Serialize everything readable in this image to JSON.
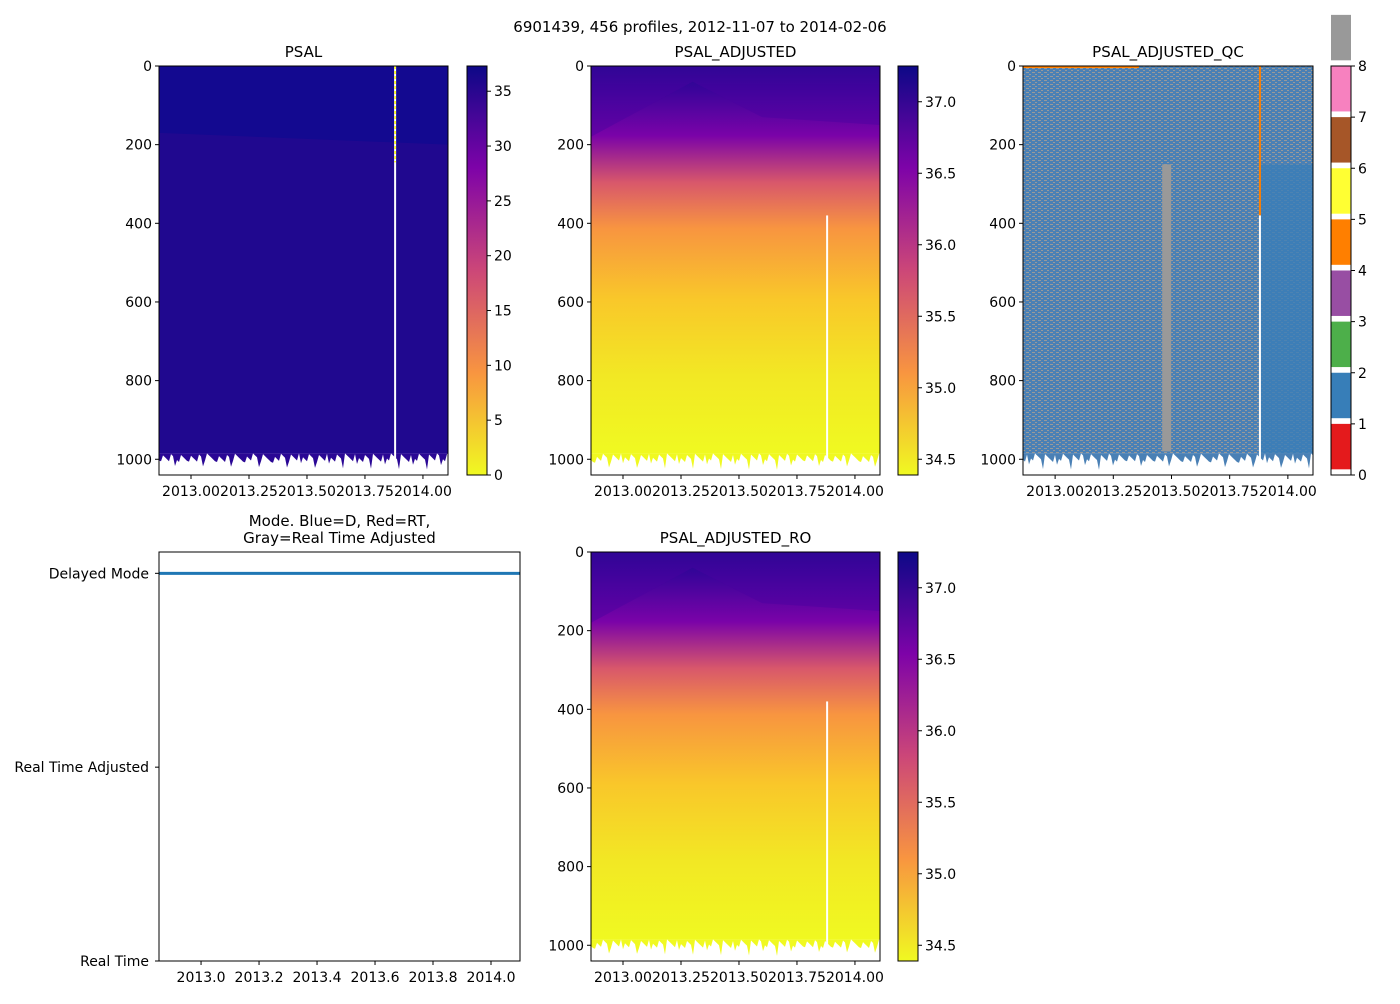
{
  "suptitle": "6901439, 456 profiles, 2012-11-07 to 2014-02-06",
  "chart_data": [
    {
      "type": "heatmap",
      "title": "PSAL",
      "xlim": [
        2012.862,
        2014.108
      ],
      "ylim": [
        1040,
        0
      ],
      "xticks": [
        "2013.00",
        "2013.25",
        "2013.50",
        "2013.75",
        "2014.00"
      ],
      "xtick_values": [
        2013.0,
        2013.25,
        2013.5,
        2013.75,
        2014.0
      ],
      "yticks": [
        0,
        200,
        400,
        600,
        800,
        1000
      ],
      "colormap": "plasma_r",
      "colorbar": {
        "range": [
          0,
          37.3
        ],
        "ticks": [
          0,
          5,
          10,
          15,
          20,
          25,
          30,
          35
        ]
      },
      "gap_profile_x": 2013.88,
      "description_colors": [
        "#1a0a8c",
        "#2a0795"
      ]
    },
    {
      "type": "heatmap",
      "title": "PSAL_ADJUSTED",
      "xlim": [
        2012.862,
        2014.108
      ],
      "ylim": [
        1040,
        0
      ],
      "xticks": [
        "2013.00",
        "2013.25",
        "2013.50",
        "2013.75",
        "2014.00"
      ],
      "xtick_values": [
        2013.0,
        2013.25,
        2013.5,
        2013.75,
        2014.0
      ],
      "yticks": [
        0,
        200,
        400,
        600,
        800,
        1000
      ],
      "colormap": "plasma_r",
      "colorbar": {
        "range": [
          34.39,
          37.25
        ],
        "ticks": [
          "34.5",
          "35.0",
          "35.5",
          "36.0",
          "36.5",
          "37.0"
        ],
        "tick_values": [
          34.5,
          35.0,
          35.5,
          36.0,
          36.5,
          37.0
        ]
      },
      "gap_profile_x": 2013.88
    },
    {
      "type": "heatmap",
      "title": "PSAL_ADJUSTED_QC",
      "xlim": [
        2012.862,
        2014.108
      ],
      "ylim": [
        1040,
        0
      ],
      "xticks": [
        "2013.00",
        "2013.25",
        "2013.50",
        "2013.75",
        "2014.00"
      ],
      "xtick_values": [
        2013.0,
        2013.25,
        2013.5,
        2013.75,
        2014.0
      ],
      "yticks": [
        0,
        200,
        400,
        600,
        800,
        1000
      ],
      "colorbar": {
        "range": [
          0,
          8
        ],
        "ticks": [
          0,
          1,
          2,
          3,
          4,
          5,
          6,
          7,
          8
        ],
        "categories": [
          "#e41a1c",
          "#377eb8",
          "#4daf4a",
          "#984ea3",
          "#ff7f00",
          "#ffff33",
          "#a65628",
          "#f781bf",
          "#999999"
        ]
      },
      "dominant_flags": [
        1,
        8
      ],
      "gap_profile_x": 2013.88
    },
    {
      "type": "line",
      "title": "Mode. Blue=D, Red=RT,",
      "title_line2": "Gray=Real Time Adjusted",
      "xlim": [
        2012.855,
        2014.1
      ],
      "xticks": [
        "2013.0",
        "2013.2",
        "2013.4",
        "2013.6",
        "2013.8",
        "2014.0"
      ],
      "xtick_values": [
        2013.0,
        2013.2,
        2013.4,
        2013.6,
        2013.8,
        2014.0
      ],
      "yticks": [
        "Real Time",
        "Real Time Adjusted",
        "Delayed Mode"
      ],
      "ytick_values": [
        0,
        1,
        2
      ],
      "ylim": [
        0,
        2.11
      ],
      "series": [
        {
          "name": "Delayed Mode",
          "color": "#1f77b4",
          "x": [
            2012.855,
            2014.1
          ],
          "y": [
            2,
            2
          ]
        }
      ]
    },
    {
      "type": "heatmap",
      "title": "PSAL_ADJUSTED_RO",
      "xlim": [
        2012.862,
        2014.108
      ],
      "ylim": [
        1040,
        0
      ],
      "xticks": [
        "2013.00",
        "2013.25",
        "2013.50",
        "2013.75",
        "2014.00"
      ],
      "xtick_values": [
        2013.0,
        2013.25,
        2013.5,
        2013.75,
        2014.0
      ],
      "yticks": [
        0,
        200,
        400,
        600,
        800,
        1000
      ],
      "colormap": "plasma_r",
      "colorbar": {
        "range": [
          34.39,
          37.25
        ],
        "ticks": [
          "34.5",
          "35.0",
          "35.5",
          "36.0",
          "36.5",
          "37.0"
        ],
        "tick_values": [
          34.5,
          35.0,
          35.5,
          36.0,
          36.5,
          37.0
        ]
      },
      "gap_profile_x": 2013.88
    }
  ]
}
